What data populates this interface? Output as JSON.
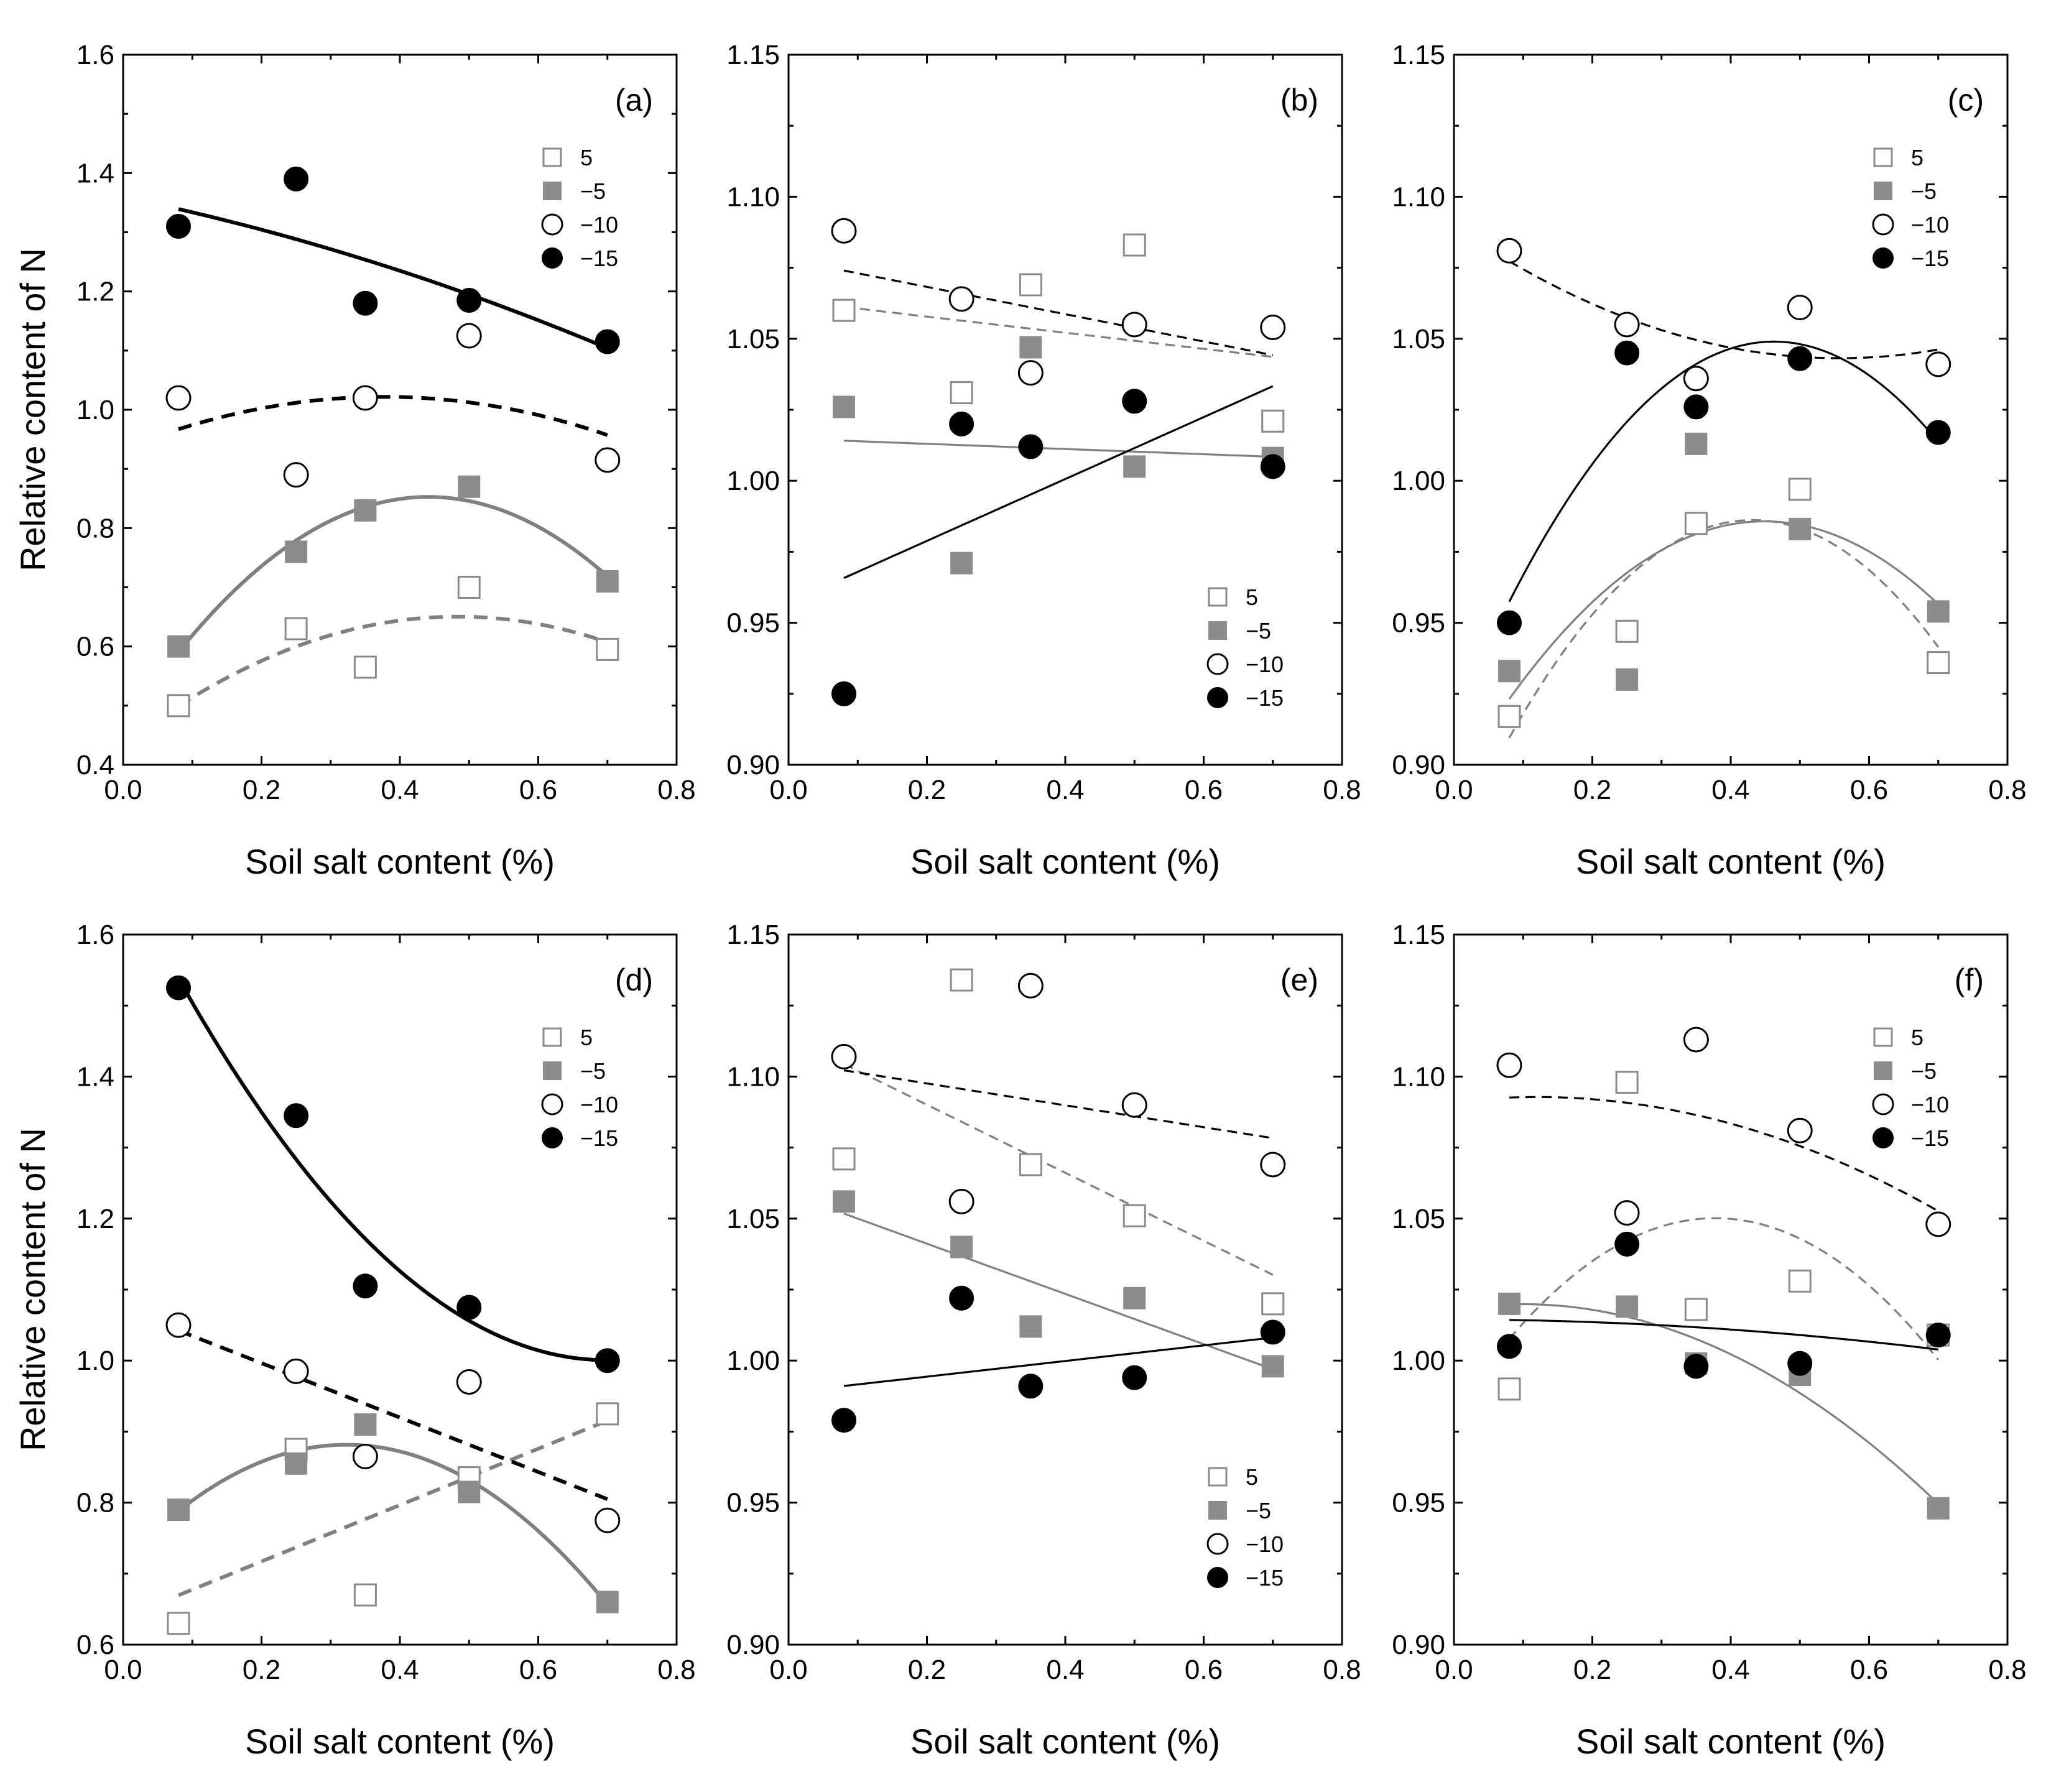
{
  "figure": {
    "ylabel": "Relative content of N",
    "xlabel": "Soil salt content (%)"
  },
  "colors": {
    "black": "#000000",
    "gray": "#808080",
    "fill_gray": "#8c8c8c"
  },
  "chart_data": [
    {
      "panel": "(a)",
      "type": "scatter",
      "xlabel": "Soil salt content (%)",
      "ylabel": "Relative content of N",
      "xlim": [
        0.0,
        0.8
      ],
      "ylim": [
        0.4,
        1.6
      ],
      "xticks": [
        "0.0",
        "0.2",
        "0.4",
        "0.6",
        "0.8"
      ],
      "yticks": [
        "0.4",
        "0.6",
        "0.8",
        "1.0",
        "1.2",
        "1.4",
        "1.6"
      ],
      "legend_position": "top-right",
      "x": [
        0.08,
        0.25,
        0.35,
        0.5,
        0.7
      ],
      "series": [
        {
          "name": "5",
          "marker": "open-square",
          "values": [
            0.5,
            0.63,
            0.565,
            0.7,
            0.595
          ],
          "trend": "quadratic-dashed-gray"
        },
        {
          "name": "−5",
          "marker": "filled-square",
          "values": [
            0.6,
            0.76,
            0.83,
            0.87,
            0.71
          ],
          "trend": "quadratic-solid-gray"
        },
        {
          "name": "−10",
          "marker": "open-circle",
          "values": [
            1.02,
            0.89,
            1.02,
            1.125,
            0.915
          ],
          "trend": "quadratic-dashed-black"
        },
        {
          "name": "−15",
          "marker": "filled-circle",
          "values": [
            1.31,
            1.39,
            1.18,
            1.185,
            1.115
          ],
          "trend": "quadratic-solid-black"
        }
      ]
    },
    {
      "panel": "(b)",
      "type": "scatter",
      "xlabel": "Soil salt content (%)",
      "ylabel": "",
      "xlim": [
        0.0,
        0.8
      ],
      "ylim": [
        0.9,
        1.15
      ],
      "xticks": [
        "0.0",
        "0.2",
        "0.4",
        "0.6",
        "0.8"
      ],
      "yticks": [
        "0.90",
        "0.95",
        "1.00",
        "1.05",
        "1.10",
        "1.15"
      ],
      "legend_position": "bottom-right",
      "x": [
        0.08,
        0.25,
        0.35,
        0.5,
        0.7
      ],
      "series": [
        {
          "name": "5",
          "marker": "open-square",
          "values": [
            1.06,
            1.031,
            1.069,
            1.083,
            1.021
          ],
          "trend": "linear-dashed-gray"
        },
        {
          "name": "−5",
          "marker": "filled-square",
          "values": [
            1.026,
            0.971,
            1.047,
            1.005,
            1.008
          ],
          "trend": "linear-solid-gray"
        },
        {
          "name": "−10",
          "marker": "open-circle",
          "values": [
            1.088,
            1.064,
            1.038,
            1.055,
            1.054
          ],
          "trend": "linear-dashed-black"
        },
        {
          "name": "−15",
          "marker": "filled-circle",
          "values": [
            0.925,
            1.02,
            1.012,
            1.028,
            1.005
          ],
          "trend": "linear-solid-black"
        }
      ]
    },
    {
      "panel": "(c)",
      "type": "scatter",
      "xlabel": "Soil salt content (%)",
      "ylabel": "",
      "xlim": [
        0.0,
        0.8
      ],
      "ylim": [
        0.9,
        1.15
      ],
      "xticks": [
        "0.0",
        "0.2",
        "0.4",
        "0.6",
        "0.8"
      ],
      "yticks": [
        "0.90",
        "0.95",
        "1.00",
        "1.05",
        "1.10",
        "1.15"
      ],
      "legend_position": "top-right",
      "x": [
        0.08,
        0.25,
        0.35,
        0.5,
        0.7
      ],
      "series": [
        {
          "name": "5",
          "marker": "open-square",
          "values": [
            0.917,
            0.947,
            0.985,
            0.997,
            0.936
          ],
          "trend": "quadratic-dashed-gray"
        },
        {
          "name": "−5",
          "marker": "filled-square",
          "values": [
            0.933,
            0.93,
            1.013,
            0.983,
            0.954
          ],
          "trend": "quadratic-solid-gray"
        },
        {
          "name": "−10",
          "marker": "open-circle",
          "values": [
            1.081,
            1.055,
            1.036,
            1.061,
            1.041
          ],
          "trend": "quadratic-dashed-black"
        },
        {
          "name": "−15",
          "marker": "filled-circle",
          "values": [
            0.95,
            1.045,
            1.026,
            1.043,
            1.017
          ],
          "trend": "quadratic-solid-black"
        }
      ]
    },
    {
      "panel": "(d)",
      "type": "scatter",
      "xlabel": "Soil salt content (%)",
      "ylabel": "Relative content of N",
      "xlim": [
        0.0,
        0.8
      ],
      "ylim": [
        0.6,
        1.6
      ],
      "xticks": [
        "0.0",
        "0.2",
        "0.4",
        "0.6",
        "0.8"
      ],
      "yticks": [
        "0.6",
        "0.8",
        "1.0",
        "1.2",
        "1.4",
        "1.6"
      ],
      "legend_position": "top-right",
      "x": [
        0.08,
        0.25,
        0.35,
        0.5,
        0.7
      ],
      "series": [
        {
          "name": "5",
          "marker": "open-square",
          "values": [
            0.63,
            0.875,
            0.67,
            0.835,
            0.925
          ],
          "trend": "linear-dashed-gray"
        },
        {
          "name": "−5",
          "marker": "filled-square",
          "values": [
            0.79,
            0.855,
            0.91,
            0.815,
            0.66
          ],
          "trend": "quadratic-solid-gray"
        },
        {
          "name": "−10",
          "marker": "open-circle",
          "values": [
            1.05,
            0.985,
            0.865,
            0.97,
            0.775
          ],
          "trend": "linear-dashed-black"
        },
        {
          "name": "−15",
          "marker": "filled-circle",
          "values": [
            1.525,
            1.345,
            1.105,
            1.075,
            1.0
          ],
          "trend": "quadratic-solid-black"
        }
      ]
    },
    {
      "panel": "(e)",
      "type": "scatter",
      "xlabel": "Soil salt content (%)",
      "ylabel": "",
      "xlim": [
        0.0,
        0.8
      ],
      "ylim": [
        0.9,
        1.15
      ],
      "xticks": [
        "0.0",
        "0.2",
        "0.4",
        "0.6",
        "0.8"
      ],
      "yticks": [
        "0.90",
        "0.95",
        "1.00",
        "1.05",
        "1.10",
        "1.15"
      ],
      "legend_position": "bottom-right",
      "x": [
        0.08,
        0.25,
        0.35,
        0.5,
        0.7
      ],
      "series": [
        {
          "name": "5",
          "marker": "open-square",
          "values": [
            1.071,
            1.134,
            1.069,
            1.051,
            1.02
          ],
          "trend": "linear-dashed-gray"
        },
        {
          "name": "−5",
          "marker": "filled-square",
          "values": [
            1.056,
            1.04,
            1.012,
            1.022,
            0.998
          ],
          "trend": "linear-solid-gray"
        },
        {
          "name": "−10",
          "marker": "open-circle",
          "values": [
            1.107,
            1.056,
            1.132,
            1.09,
            1.069
          ],
          "trend": "linear-dashed-black"
        },
        {
          "name": "−15",
          "marker": "filled-circle",
          "values": [
            0.979,
            1.022,
            0.991,
            0.994,
            1.01
          ],
          "trend": "linear-solid-black"
        }
      ]
    },
    {
      "panel": "(f)",
      "type": "scatter",
      "xlabel": "Soil salt content (%)",
      "ylabel": "",
      "xlim": [
        0.0,
        0.8
      ],
      "ylim": [
        0.9,
        1.15
      ],
      "xticks": [
        "0.0",
        "0.2",
        "0.4",
        "0.6",
        "0.8"
      ],
      "yticks": [
        "0.90",
        "0.95",
        "1.00",
        "1.05",
        "1.10",
        "1.15"
      ],
      "legend_position": "top-right",
      "x": [
        0.08,
        0.25,
        0.35,
        0.5,
        0.7
      ],
      "series": [
        {
          "name": "5",
          "marker": "open-square",
          "values": [
            0.99,
            1.098,
            1.018,
            1.028,
            1.009
          ],
          "trend": "quadratic-dashed-gray"
        },
        {
          "name": "−5",
          "marker": "filled-square",
          "values": [
            1.02,
            1.019,
            0.999,
            0.995,
            0.948
          ],
          "trend": "quadratic-solid-gray"
        },
        {
          "name": "−10",
          "marker": "open-circle",
          "values": [
            1.104,
            1.052,
            1.113,
            1.081,
            1.048
          ],
          "trend": "quadratic-dashed-black"
        },
        {
          "name": "−15",
          "marker": "filled-circle",
          "values": [
            1.005,
            1.041,
            0.998,
            0.999,
            1.009
          ],
          "trend": "quadratic-solid-black"
        }
      ]
    }
  ]
}
